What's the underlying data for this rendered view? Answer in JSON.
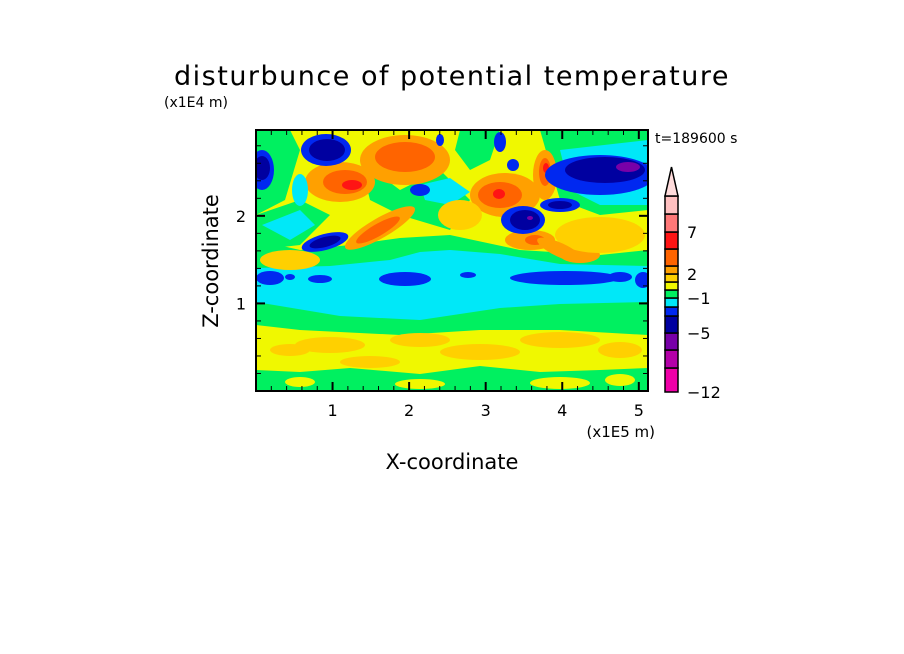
{
  "chart_data": {
    "type": "heatmap",
    "subtype": "filled-contour",
    "title": "disturbunce of potential temperature",
    "xlabel": "X-coordinate",
    "ylabel": "Z-coordinate",
    "x_scale_label": "(x1E5 m)",
    "y_scale_label": "(x1E4 m)",
    "time_label": "t=189600 s",
    "xlim": [
      0,
      5.12
    ],
    "ylim": [
      0,
      2.98
    ],
    "xticks": [
      1,
      2,
      3,
      4,
      5
    ],
    "xtick_labels": [
      "1",
      "2",
      "3",
      "4",
      "5"
    ],
    "yticks": [
      1,
      2
    ],
    "ytick_labels": [
      "1",
      "2"
    ],
    "minor_tick_step": 0.2,
    "grid": false,
    "colorbar": {
      "placement": "right",
      "levels": [
        -12,
        -9,
        -7,
        -5,
        -3,
        -2,
        -1,
        0,
        1,
        2,
        3,
        5,
        7,
        9,
        12
      ],
      "labeled_levels": [
        "-12",
        "-5",
        "-1",
        "2",
        "7"
      ],
      "colors": [
        "#f000a8",
        "#b400a8",
        "#7800a8",
        "#0000a0",
        "#0028f0",
        "#00e8f8",
        "#00f060",
        "#f0f800",
        "#ffd000",
        "#ffa000",
        "#ff6400",
        "#ff1414",
        "#ff7878",
        "#ffc0c0"
      ],
      "overflow_color": "#ffdcdc",
      "extend": "max"
    }
  }
}
